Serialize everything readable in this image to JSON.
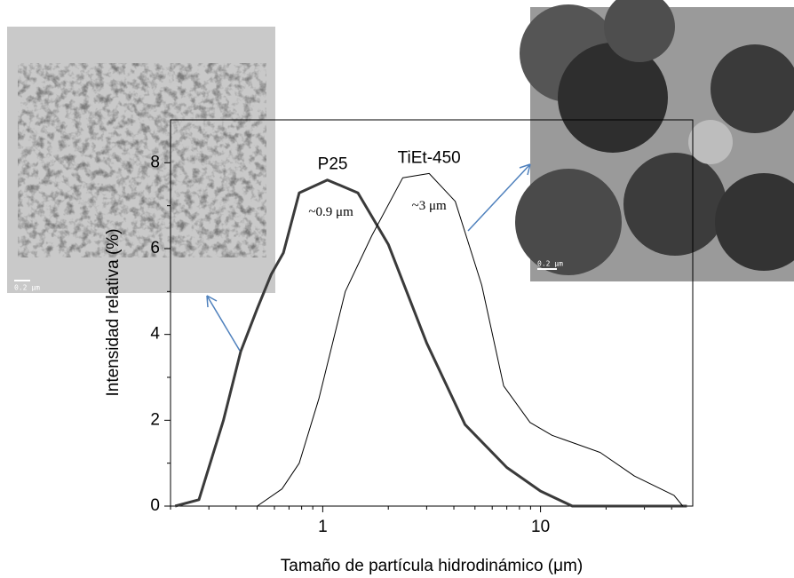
{
  "chart_data": {
    "type": "line",
    "xlabel": "Tamaño de partícula hidrodinámico (μm)",
    "ylabel": "Intensidad relativa (%)",
    "xscale": "log",
    "xlim": [
      0.2,
      50
    ],
    "xticks": [
      1,
      10
    ],
    "xminor_ticks": [
      0.2,
      0.3,
      0.4,
      0.5,
      0.6,
      0.7,
      0.8,
      0.9,
      2,
      3,
      4,
      5,
      6,
      7,
      8,
      9,
      20,
      30,
      40
    ],
    "ylim": [
      0,
      9
    ],
    "yticks": [
      0,
      2,
      4,
      6,
      8
    ],
    "yminor_ticks": [
      1,
      3,
      5,
      7
    ],
    "series": [
      {
        "name": "P25",
        "color": "#3a3a3a",
        "width": 3,
        "annotation": "~0.9 μm",
        "x": [
          0.21,
          0.27,
          0.35,
          0.42,
          0.5,
          0.58,
          0.66,
          0.78,
          1.05,
          1.45,
          2.0,
          3.0,
          4.5,
          7.0,
          10,
          14,
          47
        ],
        "values": [
          0,
          0.15,
          2.0,
          3.6,
          4.6,
          5.4,
          5.9,
          7.3,
          7.6,
          7.3,
          6.1,
          3.8,
          1.9,
          0.9,
          0.35,
          0,
          0
        ]
      },
      {
        "name": "TiEt-450",
        "color": "#000000",
        "width": 1,
        "annotation": "~3 μm",
        "x": [
          0.5,
          0.65,
          0.78,
          0.96,
          1.27,
          1.68,
          2.33,
          3.08,
          4.06,
          5.37,
          6.77,
          8.95,
          11.3,
          18.8,
          27,
          41,
          45
        ],
        "values": [
          0,
          0.4,
          1.0,
          2.5,
          5.0,
          6.3,
          7.65,
          7.75,
          7.1,
          5.15,
          2.8,
          1.95,
          1.65,
          1.25,
          0.7,
          0.25,
          0
        ]
      }
    ]
  },
  "images": [
    {
      "scale_label": "0.2 μm"
    },
    {
      "scale_label": "0.2 μm"
    }
  ]
}
